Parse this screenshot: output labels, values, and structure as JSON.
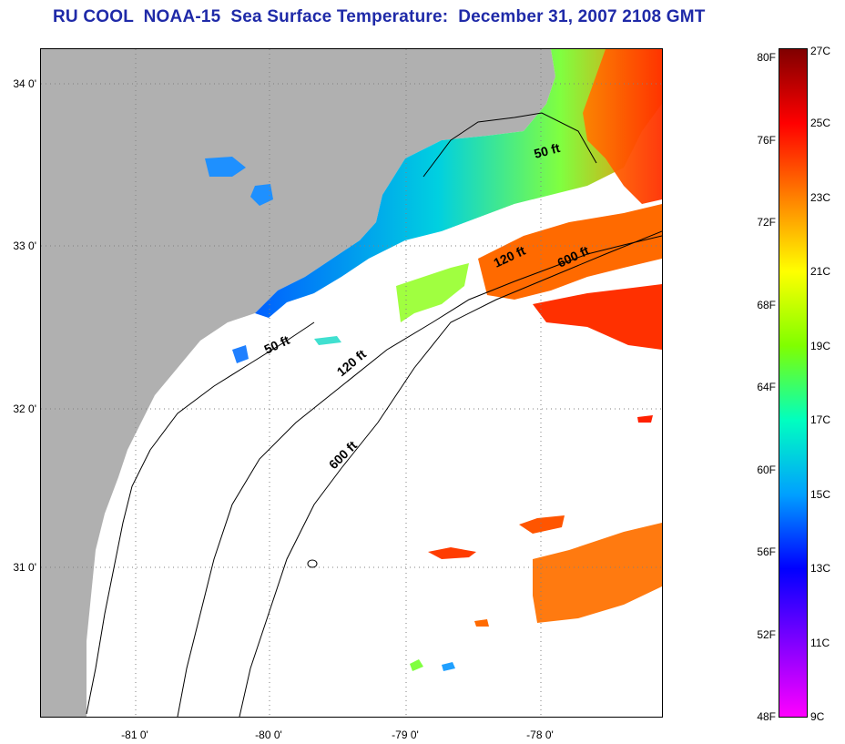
{
  "title": "RU COOL  NOAA-15  Sea Surface Temperature:  December 31, 2007 2108 GMT",
  "map": {
    "lat_labels": [
      "34 0'",
      "33 0'",
      "32 0'",
      "31 0'"
    ],
    "lon_labels": [
      "-81 0'",
      "-80 0'",
      "-79 0'",
      "-78 0'"
    ],
    "contour_labels": [
      "50 ft",
      "120 ft",
      "600 ft",
      "50 ft",
      "120 ft",
      "600 ft"
    ],
    "colors": {
      "land": "#b0b0b0",
      "cloud": "#ffffff",
      "gridline": "#808080"
    }
  },
  "colorbar": {
    "fahrenheit_labels": [
      "80F",
      "76F",
      "72F",
      "68F",
      "64F",
      "60F",
      "56F",
      "52F",
      "48F"
    ],
    "celsius_labels": [
      "27C",
      "25C",
      "23C",
      "21C",
      "19C",
      "17C",
      "15C",
      "13C",
      "11C",
      "9C"
    ],
    "gradient_colors": [
      "#800000",
      "#ff0000",
      "#ff8000",
      "#ffff00",
      "#80ff00",
      "#00ffc0",
      "#00a0ff",
      "#0000ff",
      "#8000ff",
      "#ff00ff"
    ]
  }
}
